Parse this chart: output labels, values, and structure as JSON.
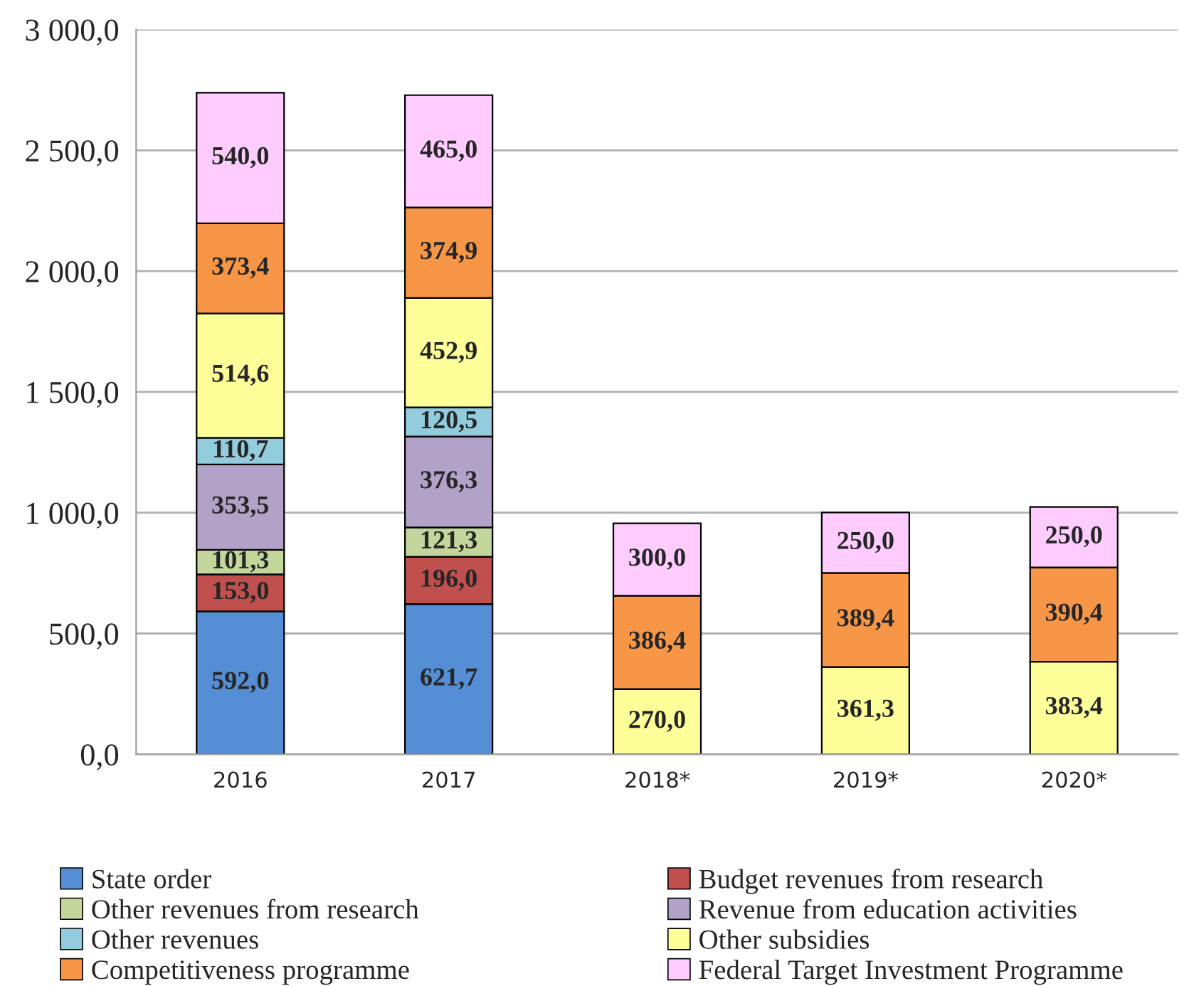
{
  "chart_data": {
    "type": "bar",
    "stacked": true,
    "categories": [
      "2016",
      "2017",
      "2018*",
      "2019*",
      "2020*"
    ],
    "series": [
      {
        "name": "State order",
        "color": "#558ed5",
        "values": [
          592.0,
          621.7,
          null,
          null,
          null
        ],
        "value_labels": [
          "592,0",
          "621,7",
          null,
          null,
          null
        ]
      },
      {
        "name": "Budget revenues from research",
        "color": "#c0504d",
        "values": [
          153.0,
          196.0,
          null,
          null,
          null
        ],
        "value_labels": [
          "153,0",
          "196,0",
          null,
          null,
          null
        ]
      },
      {
        "name": "Other revenues from research",
        "color": "#c3d69b",
        "values": [
          101.3,
          121.3,
          null,
          null,
          null
        ],
        "value_labels": [
          "101,3",
          "121,3",
          null,
          null,
          null
        ]
      },
      {
        "name": "Revenue from education activities",
        "color": "#b3a2c7",
        "values": [
          353.5,
          376.3,
          null,
          null,
          null
        ],
        "value_labels": [
          "353,5",
          "376,3",
          null,
          null,
          null
        ]
      },
      {
        "name": "Other revenues",
        "color": "#93cddd",
        "values": [
          110.7,
          120.5,
          null,
          null,
          null
        ],
        "value_labels": [
          "110,7",
          "120,5",
          null,
          null,
          null
        ]
      },
      {
        "name": "Other subsidies",
        "color": "#ffff99",
        "values": [
          514.6,
          452.9,
          270.0,
          361.3,
          383.4
        ],
        "value_labels": [
          "514,6",
          "452,9",
          "270,0",
          "361,3",
          "383,4"
        ]
      },
      {
        "name": "Competitiveness programme",
        "color": "#f79646",
        "values": [
          373.4,
          374.9,
          386.4,
          389.4,
          390.4
        ],
        "value_labels": [
          "373,4",
          "374,9",
          "386,4",
          "389,4",
          "390,4"
        ]
      },
      {
        "name": "Federal Target Investment Programme",
        "color": "#ffccff",
        "values": [
          540.0,
          465.0,
          300.0,
          250.0,
          250.0
        ],
        "value_labels": [
          "540,0",
          "465,0",
          "300,0",
          "250,0",
          "250,0"
        ]
      }
    ],
    "ylim": [
      0,
      3000
    ],
    "yticks": [
      {
        "value": 0,
        "label": "0,0"
      },
      {
        "value": 500,
        "label": "500,0"
      },
      {
        "value": 1000,
        "label": "1 000,0"
      },
      {
        "value": 1500,
        "label": "1 500,0"
      },
      {
        "value": 2000,
        "label": "2 000,0"
      },
      {
        "value": 2500,
        "label": "2 500,0"
      },
      {
        "value": 3000,
        "label": "3 000,0"
      }
    ],
    "grid": "y",
    "legend": "bottom"
  }
}
